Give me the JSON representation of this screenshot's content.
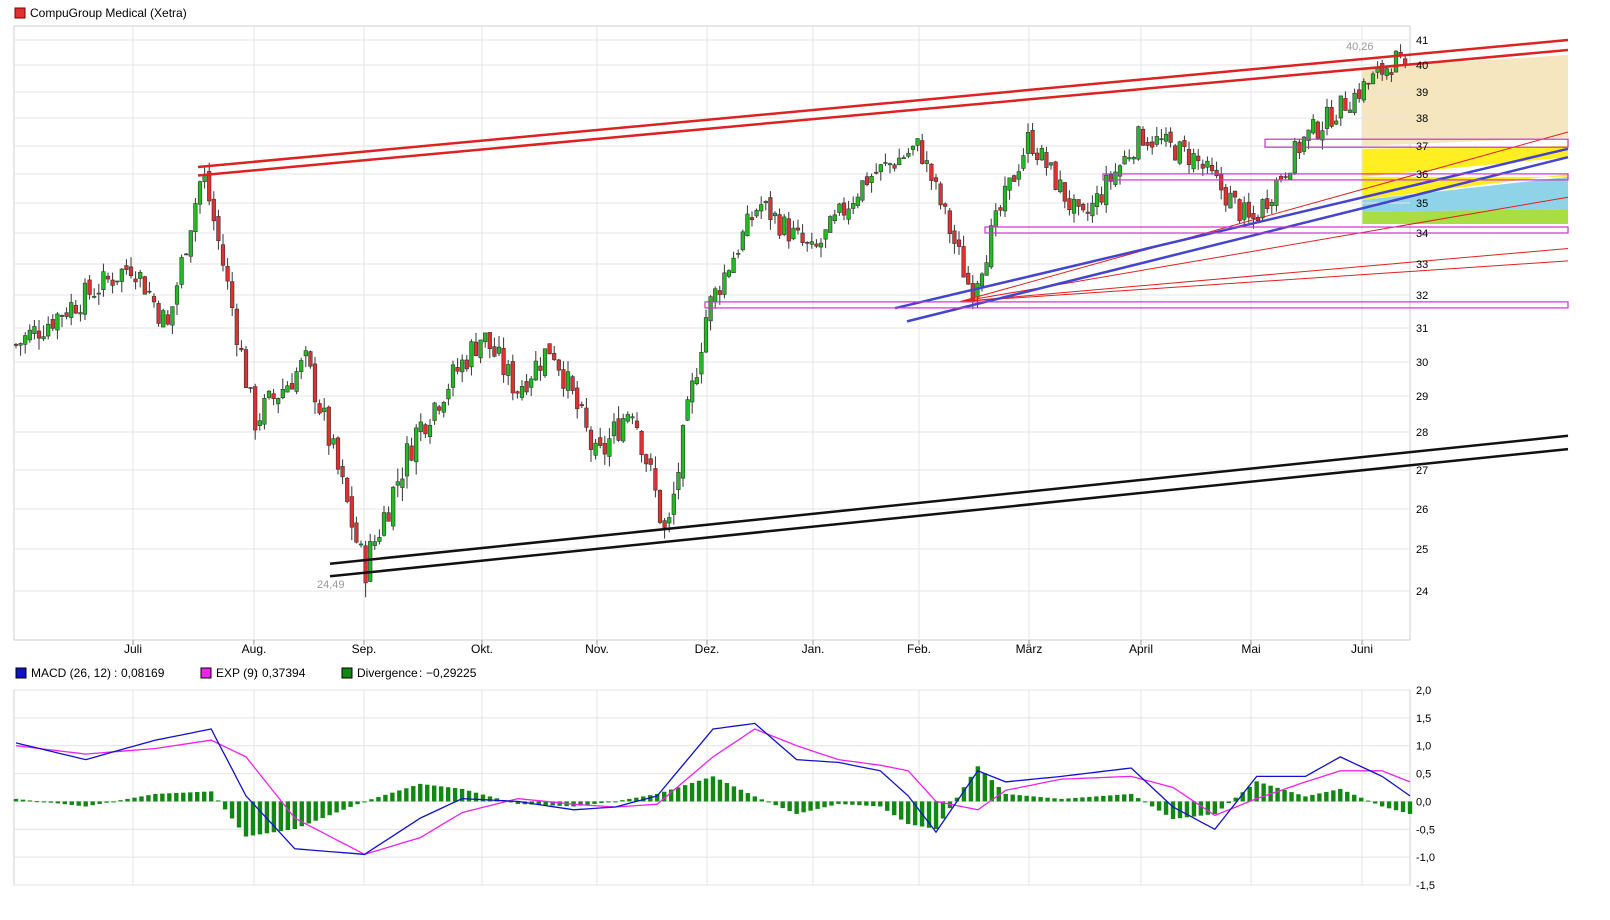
{
  "chart_data": [
    {
      "type": "candlestick",
      "title": "CompuGroup Medical (Xetra)",
      "colors": {
        "up": "#22bb22",
        "down": "#e03030",
        "title_swatch": "#e03030"
      },
      "x_tick_labels": [
        "Juli",
        "Aug.",
        "Sep.",
        "Okt.",
        "Nov.",
        "Dez.",
        "Jan.",
        "Feb.",
        "März",
        "April",
        "Mai",
        "Juni"
      ],
      "y_tick_labels": [
        24,
        25,
        26,
        27,
        28,
        29,
        30,
        31,
        32,
        33,
        34,
        35,
        36,
        37,
        38,
        39,
        40,
        41
      ],
      "y_scale": "log",
      "ylim": [
        23.2,
        41.2
      ],
      "grid": true,
      "annotations": {
        "max": "40,26",
        "min": "24,49"
      },
      "price_path": [
        [
          "Juni",
          30.5
        ],
        [
          "Juli",
          33.0
        ],
        [
          "Juli",
          31.0
        ],
        [
          "Juli",
          36.1
        ],
        [
          "Aug.",
          28.3
        ],
        [
          "Aug.",
          30.0
        ],
        [
          "Sep.",
          24.49
        ],
        [
          "Sep.",
          28.0
        ],
        [
          "Okt.",
          30.8
        ],
        [
          "Okt.",
          29.2
        ],
        [
          "Okt.",
          30.5
        ],
        [
          "Nov.",
          27.2
        ],
        [
          "Nov.",
          28.8
        ],
        [
          "Nov.",
          25.2
        ],
        [
          "Dez.",
          31.5
        ],
        [
          "Dez.",
          35.0
        ],
        [
          "Jan.",
          33.3
        ],
        [
          "Jan.",
          35.8
        ],
        [
          "Feb.",
          37.0
        ],
        [
          "Feb.",
          32.1
        ],
        [
          "März",
          37.3
        ],
        [
          "März",
          34.3
        ],
        [
          "April",
          37.4
        ],
        [
          "April",
          36.6
        ],
        [
          "Mai",
          34.3
        ],
        [
          "Mai",
          37.2
        ],
        [
          "Juni",
          40.26
        ],
        [
          "Juni",
          37.5
        ],
        [
          "Juni",
          35.7
        ]
      ],
      "overlays": {
        "channel_color": "#dd2222",
        "support_color": "#111111",
        "trend_color": "#4444cc",
        "level_color": "#cc33cc",
        "levels": [
          31.7,
          34.1,
          35.9,
          37.1
        ],
        "zones": [
          "#f5e6c0",
          "#ffee22",
          "#8fd3e8",
          "#a8dd44"
        ]
      }
    },
    {
      "type": "line+bar",
      "legend": [
        {
          "name": "MACD (26, 12)",
          "value": "0,08169",
          "color": "#1111cc"
        },
        {
          "name": "EXP (9)",
          "value": "0,37394",
          "color": "#ee22ee"
        },
        {
          "name": "Divergence",
          "value": "−0,29225",
          "color": "#118811"
        }
      ],
      "y_tick_labels": [
        "2,0",
        "1,5",
        "1,0",
        "0,5",
        "0,0",
        "-0,5",
        "-1,0",
        "-1,5"
      ],
      "ylim": [
        -1.5,
        2.0
      ],
      "grid": true,
      "macd_path": [
        [
          0,
          1.05
        ],
        [
          10,
          0.75
        ],
        [
          20,
          1.1
        ],
        [
          28,
          1.3
        ],
        [
          33,
          0.1
        ],
        [
          40,
          -0.85
        ],
        [
          50,
          -0.95
        ],
        [
          58,
          -0.3
        ],
        [
          64,
          0.05
        ],
        [
          72,
          0.0
        ],
        [
          80,
          -0.15
        ],
        [
          86,
          -0.1
        ],
        [
          92,
          0.1
        ],
        [
          100,
          1.3
        ],
        [
          106,
          1.4
        ],
        [
          112,
          0.75
        ],
        [
          118,
          0.7
        ],
        [
          124,
          0.55
        ],
        [
          128,
          0.1
        ],
        [
          132,
          -0.55
        ],
        [
          138,
          0.55
        ],
        [
          142,
          0.35
        ],
        [
          150,
          0.45
        ],
        [
          160,
          0.6
        ],
        [
          166,
          -0.1
        ],
        [
          172,
          -0.5
        ],
        [
          178,
          0.45
        ],
        [
          185,
          0.45
        ],
        [
          190,
          0.8
        ],
        [
          196,
          0.45
        ],
        [
          200,
          0.1
        ]
      ],
      "exp_path": [
        [
          0,
          1.0
        ],
        [
          10,
          0.85
        ],
        [
          20,
          0.95
        ],
        [
          28,
          1.1
        ],
        [
          33,
          0.8
        ],
        [
          40,
          -0.3
        ],
        [
          50,
          -0.95
        ],
        [
          58,
          -0.65
        ],
        [
          64,
          -0.2
        ],
        [
          72,
          0.05
        ],
        [
          80,
          -0.05
        ],
        [
          86,
          -0.1
        ],
        [
          92,
          -0.05
        ],
        [
          100,
          0.8
        ],
        [
          106,
          1.3
        ],
        [
          112,
          1.0
        ],
        [
          118,
          0.75
        ],
        [
          124,
          0.65
        ],
        [
          128,
          0.55
        ],
        [
          132,
          0.0
        ],
        [
          138,
          -0.15
        ],
        [
          142,
          0.2
        ],
        [
          150,
          0.4
        ],
        [
          160,
          0.45
        ],
        [
          166,
          0.25
        ],
        [
          172,
          -0.25
        ],
        [
          178,
          0.05
        ],
        [
          185,
          0.35
        ],
        [
          190,
          0.55
        ],
        [
          196,
          0.55
        ],
        [
          200,
          0.35
        ]
      ]
    }
  ]
}
